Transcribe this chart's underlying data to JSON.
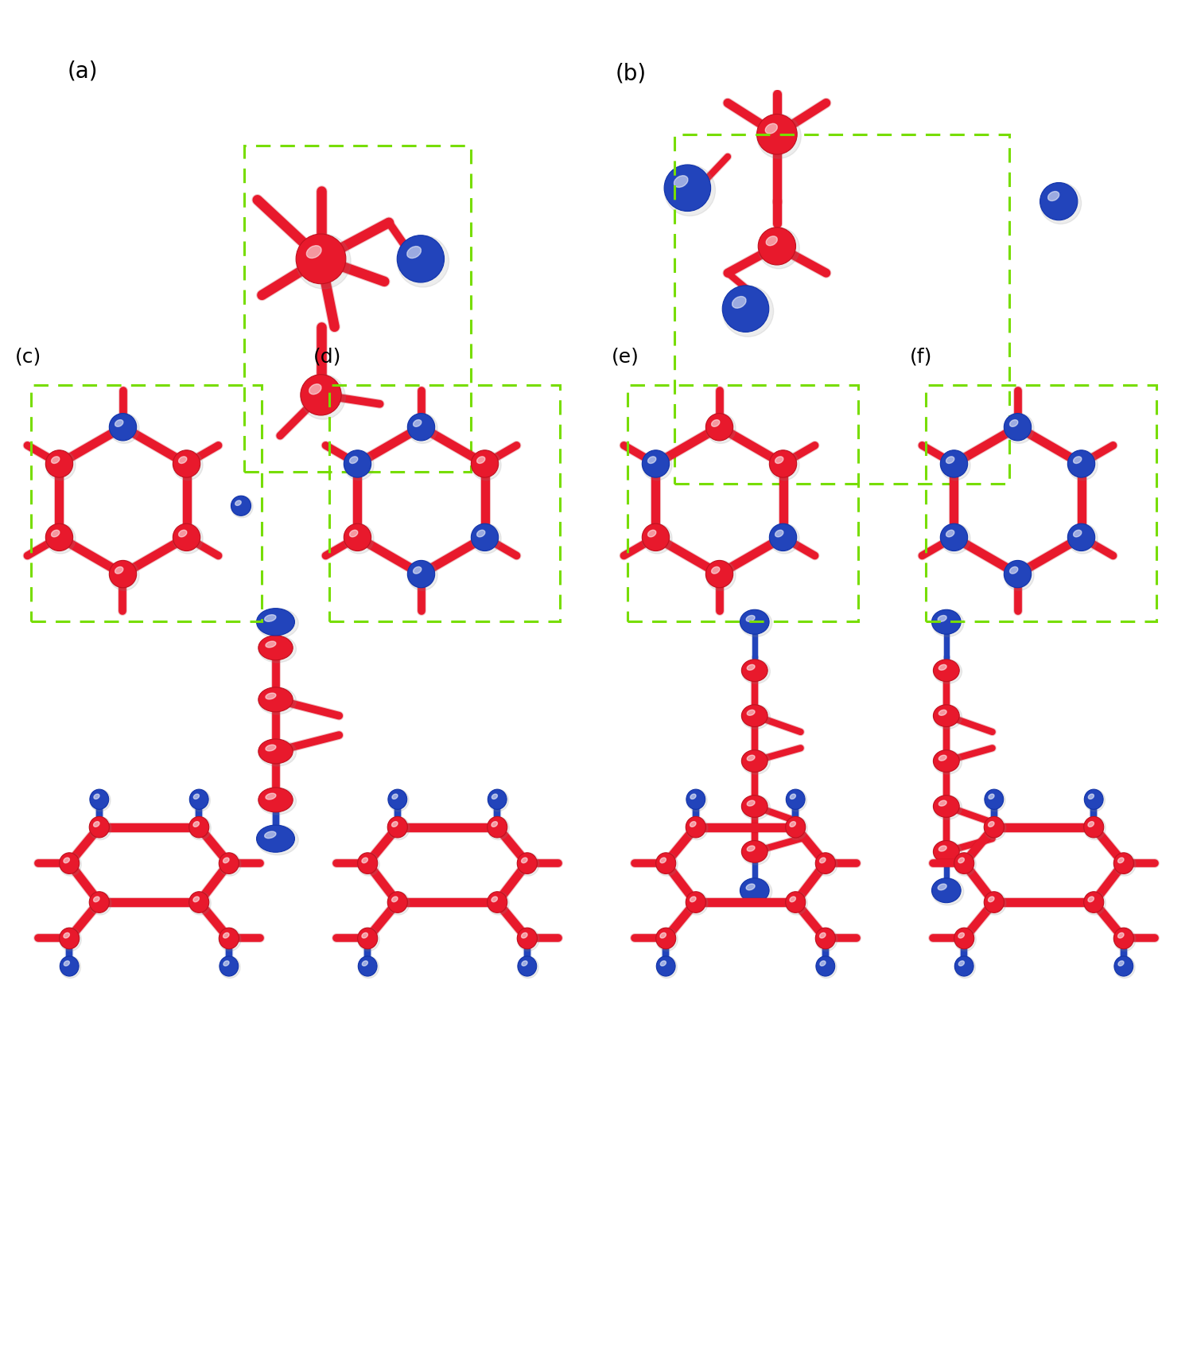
{
  "fig_width": 15.0,
  "fig_height": 17.12,
  "bg_color": "#ffffff",
  "RED": "#e8192c",
  "BLUE": "#2244bb",
  "GREEN": "#77dd00",
  "DARK_RED": "#c0101e",
  "LIGHT_RED": "#ff6070",
  "DARK_BLUE": "#1133aa",
  "LIGHT_BLUE": "#5577ee",
  "panel_labels": [
    "(a)",
    "(b)",
    "(c)",
    "(d)",
    "(e)",
    "(f)"
  ],
  "label_fs": 20
}
